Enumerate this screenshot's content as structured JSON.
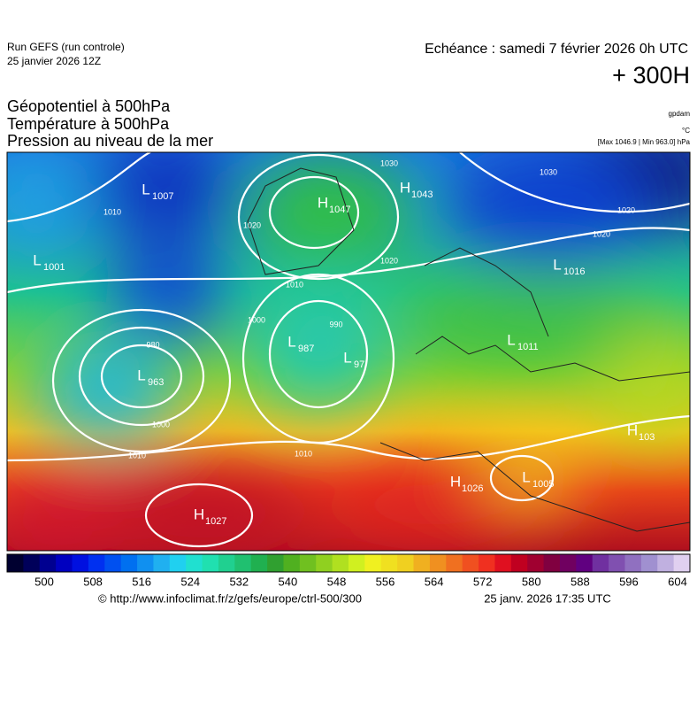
{
  "header": {
    "run": "Run GEFS (run controle)",
    "run_date": "25 janvier 2026 12Z",
    "valid": "Echéance : samedi 7 février 2026 0h UTC",
    "lead": "+ 300H"
  },
  "titles": [
    "Géopotentiel à 500hPa",
    "Température à 500hPa",
    "Pression au niveau de la mer"
  ],
  "units": {
    "geopotential": "gpdam",
    "temperature": "°C",
    "pressure": "[Max 1046.9 | Min 963.0] hPa"
  },
  "centers": [
    {
      "kind": "L",
      "value": "1007"
    },
    {
      "kind": "H",
      "value": "1047"
    },
    {
      "kind": "H",
      "value": "1043"
    },
    {
      "kind": "L",
      "value": "1001"
    },
    {
      "kind": "L",
      "value": "987"
    },
    {
      "kind": "L",
      "value": "97"
    },
    {
      "kind": "L",
      "value": "963"
    },
    {
      "kind": "L",
      "value": "1016"
    },
    {
      "kind": "L",
      "value": "1011"
    },
    {
      "kind": "H",
      "value": "1027"
    },
    {
      "kind": "H",
      "value": "1026"
    },
    {
      "kind": "L",
      "value": "1005"
    },
    {
      "kind": "H",
      "value": "103"
    }
  ],
  "isobar_labels": [
    1010,
    1030,
    1020,
    1020,
    1010,
    1000,
    990,
    980,
    1010,
    1010,
    1000,
    1020,
    1030,
    1020
  ],
  "colorbar_ticks": [
    500,
    508,
    516,
    524,
    532,
    540,
    548,
    556,
    564,
    572,
    580,
    588,
    596,
    604
  ],
  "footer": {
    "url": "© http://www.infoclimat.fr/z/gefs/europe/ctrl-500/300",
    "generated": "25 janv. 2026 17:35 UTC"
  }
}
